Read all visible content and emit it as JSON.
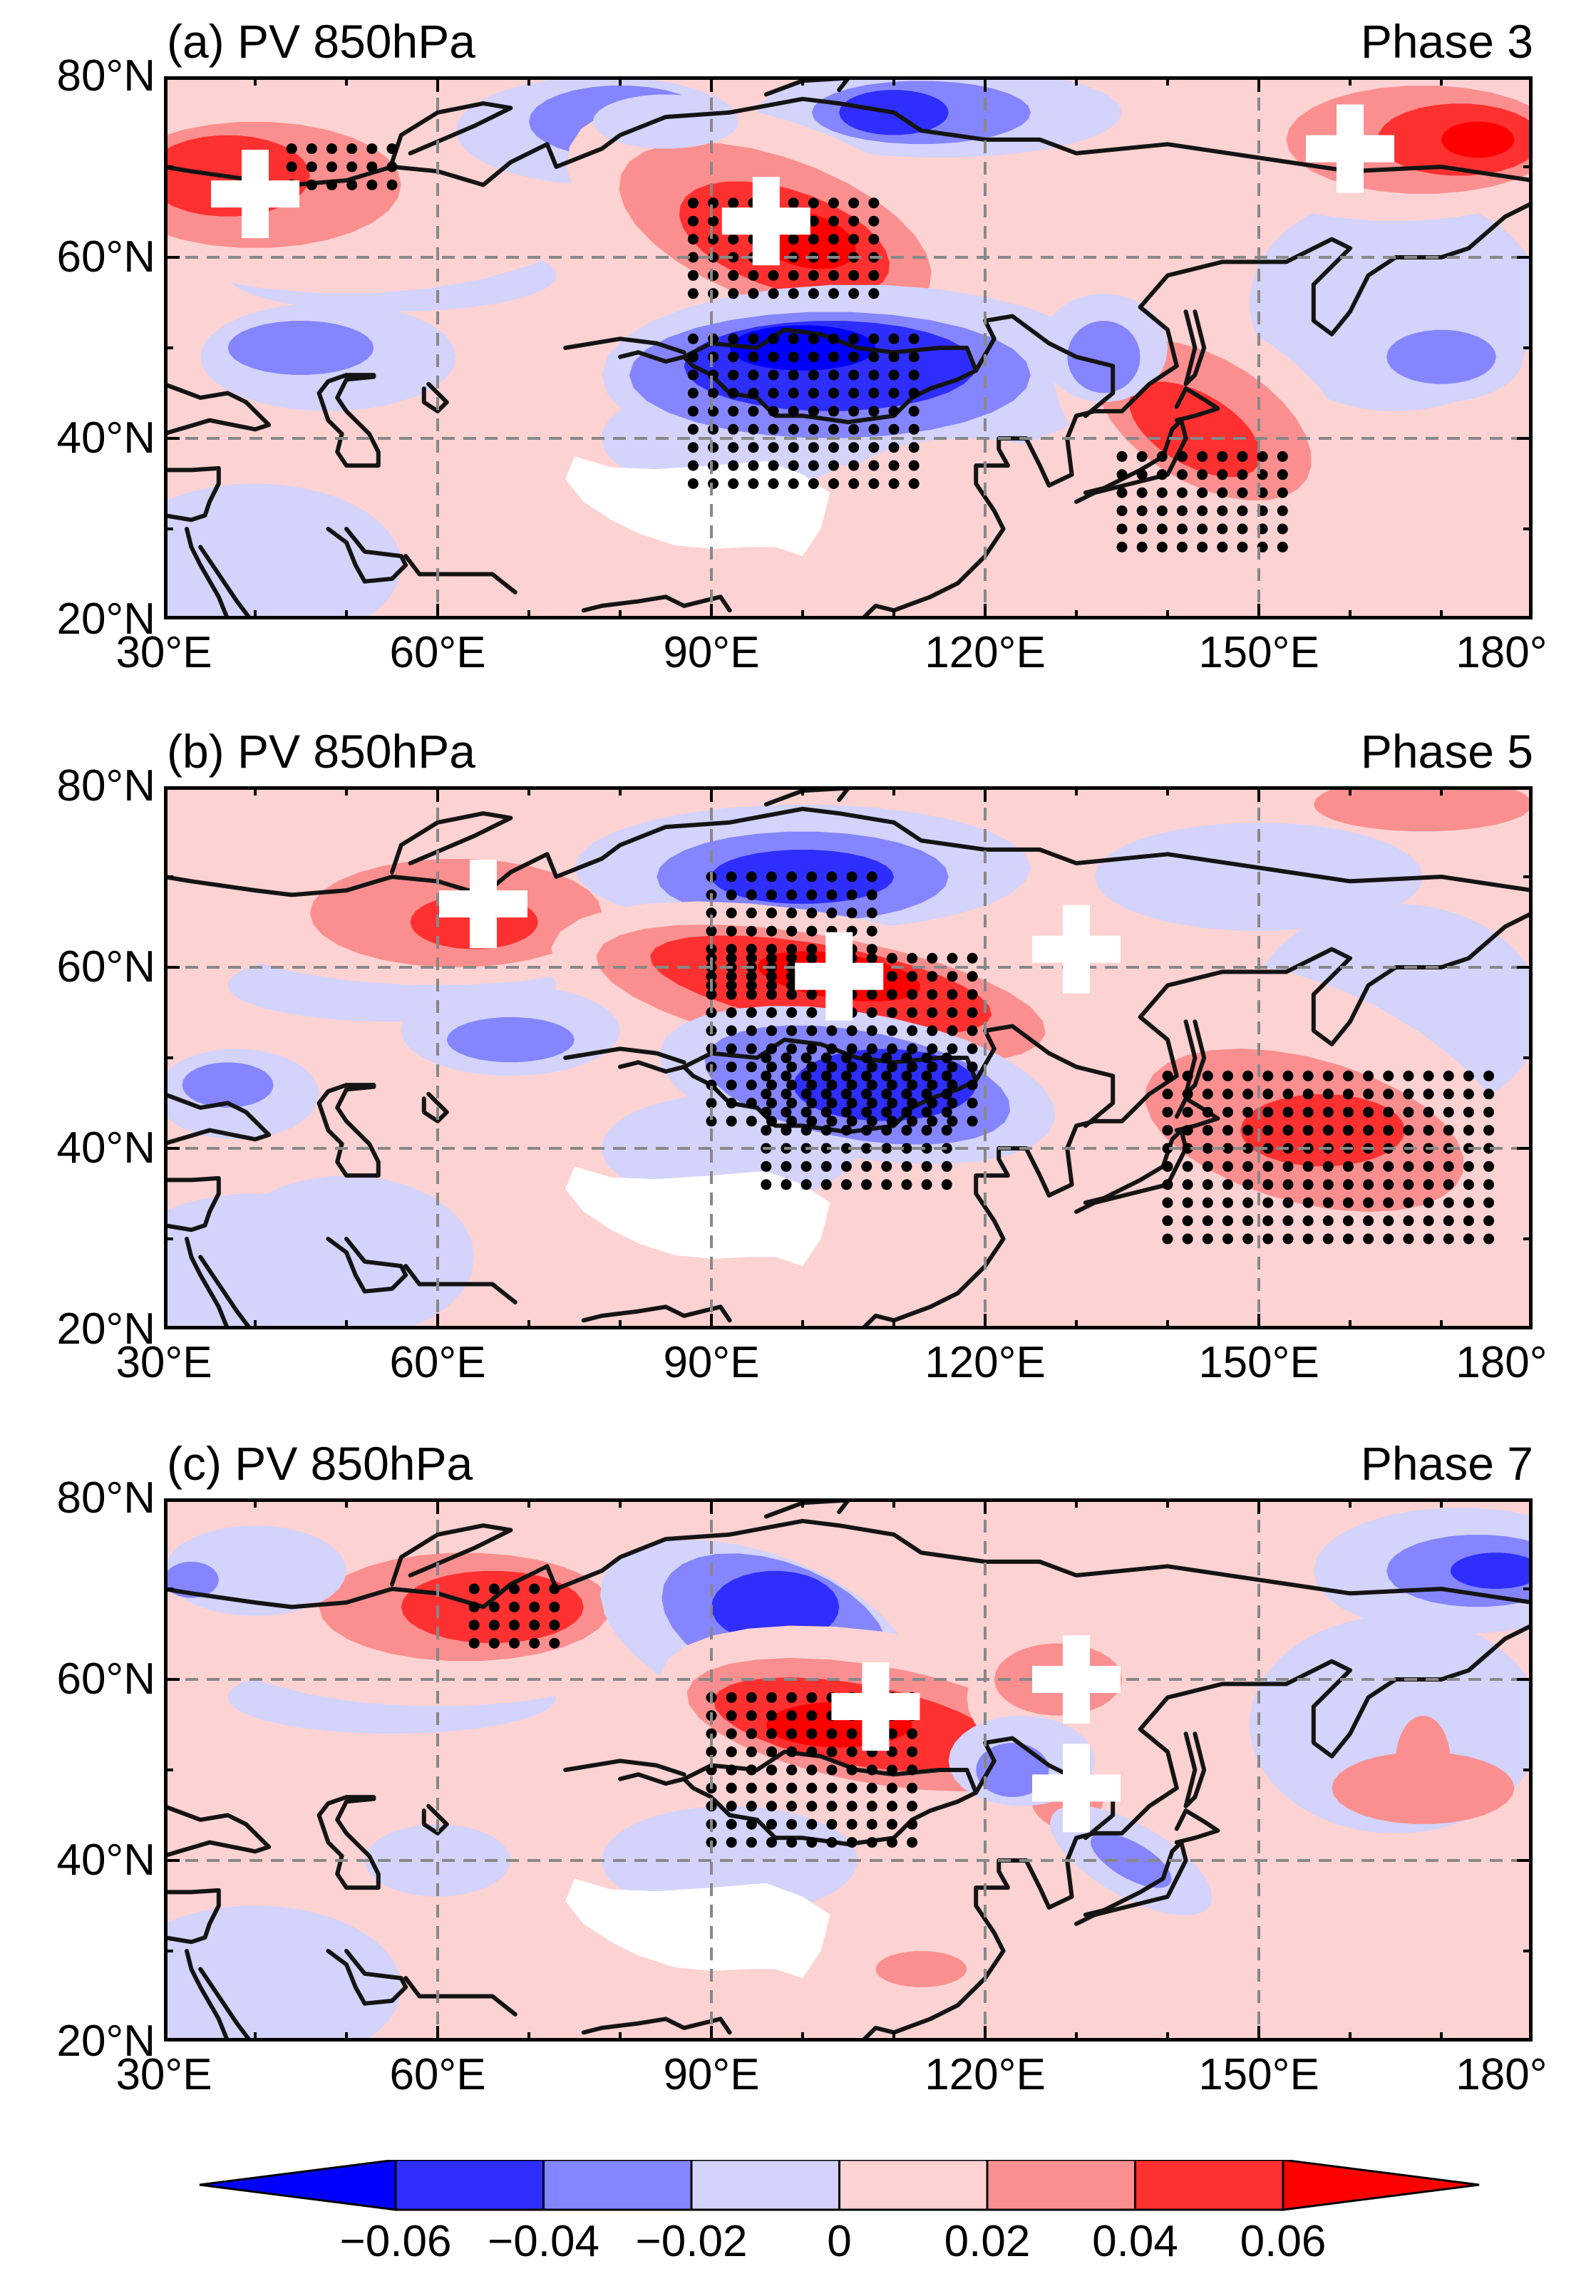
{
  "figure": {
    "colors": {
      "n6": "#0000ff",
      "n4": "#2e2eff",
      "n2": "#8585ff",
      "n0": "#d3d3fb",
      "p0": "#fdd2d2",
      "p2": "#fb8f8f",
      "p4": "#ff3030",
      "p6": "#ff0000",
      "plateau": "#ffffff",
      "coast": "#141414",
      "grid": "#888888"
    },
    "lat_labels": [
      "80°N",
      "60°N",
      "40°N",
      "20°N"
    ],
    "lon_labels": [
      "30°E",
      "60°E",
      "90°E",
      "120°E",
      "150°E",
      "180°"
    ]
  },
  "panels": [
    {
      "id": "a",
      "title": "(a) PV 850hPa",
      "phase": "Phase 3",
      "crosses": [
        [
          40,
          67
        ],
        [
          96,
          64
        ],
        [
          160,
          72
        ]
      ],
      "blobs": [
        {
          "c": "p0",
          "lon": 50,
          "lat": 68,
          "rx": 30,
          "ry": 12
        },
        {
          "c": "p2",
          "lon": 40,
          "lat": 68,
          "rx": 16,
          "ry": 7
        },
        {
          "c": "p4",
          "lon": 37,
          "lat": 69,
          "rx": 9,
          "ry": 4.5
        },
        {
          "c": "n0",
          "lon": 78,
          "lat": 74,
          "rx": 16,
          "ry": 6
        },
        {
          "c": "n2",
          "lon": 80,
          "lat": 75,
          "rx": 10,
          "ry": 4
        },
        {
          "c": "n0",
          "lon": 115,
          "lat": 76,
          "rx": 20,
          "ry": 5
        },
        {
          "c": "n2",
          "lon": 113,
          "lat": 76,
          "rx": 12,
          "ry": 3.5
        },
        {
          "c": "n4",
          "lon": 110,
          "lat": 76,
          "rx": 6,
          "ry": 2.5
        },
        {
          "c": "p0",
          "lon": 97,
          "lat": 64,
          "rx": 24,
          "ry": 11,
          "rot": -20
        },
        {
          "c": "p2",
          "lon": 97,
          "lat": 63,
          "rx": 18,
          "ry": 8,
          "rot": -20
        },
        {
          "c": "p4",
          "lon": 98,
          "lat": 62,
          "rx": 12,
          "ry": 5.5,
          "rot": -18
        },
        {
          "c": "p6",
          "lon": 100,
          "lat": 62,
          "rx": 6,
          "ry": 3,
          "rot": -15
        },
        {
          "c": "n0",
          "lon": 106,
          "lat": 47,
          "rx": 28,
          "ry": 10
        },
        {
          "c": "n2",
          "lon": 103,
          "lat": 47,
          "rx": 22,
          "ry": 7
        },
        {
          "c": "n4",
          "lon": 103,
          "lat": 48,
          "rx": 16,
          "ry": 5
        },
        {
          "c": "n6",
          "lon": 100,
          "lat": 50,
          "rx": 8,
          "ry": 2.5
        },
        {
          "c": "n0",
          "lon": 48,
          "lat": 49,
          "rx": 14,
          "ry": 6
        },
        {
          "c": "n2",
          "lon": 45,
          "lat": 50,
          "rx": 8,
          "ry": 3
        },
        {
          "c": "p0",
          "lon": 144,
          "lat": 42,
          "rx": 18,
          "ry": 11,
          "rot": -30
        },
        {
          "c": "p2",
          "lon": 144,
          "lat": 42,
          "rx": 13,
          "ry": 7,
          "rot": -30
        },
        {
          "c": "p4",
          "lon": 143,
          "lat": 41,
          "rx": 8,
          "ry": 4,
          "rot": -30
        },
        {
          "c": "n0",
          "lon": 133,
          "lat": 50,
          "rx": 7,
          "ry": 6
        },
        {
          "c": "n2",
          "lon": 133,
          "lat": 49,
          "rx": 4,
          "ry": 4
        },
        {
          "c": "n0",
          "lon": 170,
          "lat": 49,
          "rx": 9,
          "ry": 5
        },
        {
          "c": "n2",
          "lon": 170,
          "lat": 49,
          "rx": 6,
          "ry": 3
        },
        {
          "c": "p0",
          "lon": 165,
          "lat": 73,
          "rx": 22,
          "ry": 9
        },
        {
          "c": "p2",
          "lon": 168,
          "lat": 73,
          "rx": 15,
          "ry": 6
        },
        {
          "c": "p4",
          "lon": 172,
          "lat": 73,
          "rx": 9,
          "ry": 4
        },
        {
          "c": "p6",
          "lon": 174,
          "lat": 73,
          "rx": 4,
          "ry": 2
        },
        {
          "c": "p0",
          "lon": 118,
          "lat": 34,
          "rx": 14,
          "ry": 6
        },
        {
          "c": "n0",
          "lon": 85,
          "lat": 75,
          "rx": 8,
          "ry": 3
        }
      ],
      "dots": [
        [
          44,
          72,
          12,
          1,
          3,
          2
        ],
        [
          88,
          66,
          22,
          4,
          6,
          2
        ],
        [
          88,
          51,
          26,
          6,
          9,
          2
        ],
        [
          135,
          38,
          18,
          8,
          6,
          2
        ]
      ]
    },
    {
      "id": "b",
      "title": "(b) PV 850hPa",
      "phase": "Phase 5",
      "crosses": [
        [
          65,
          67
        ],
        [
          104,
          59
        ],
        [
          130,
          62
        ]
      ],
      "blobs": [
        {
          "c": "p0",
          "lon": 60,
          "lat": 68,
          "rx": 30,
          "ry": 10
        },
        {
          "c": "p2",
          "lon": 62,
          "lat": 66,
          "rx": 16,
          "ry": 6
        },
        {
          "c": "p4",
          "lon": 64,
          "lat": 65,
          "rx": 7,
          "ry": 3
        },
        {
          "c": "n0",
          "lon": 100,
          "lat": 71,
          "rx": 25,
          "ry": 7
        },
        {
          "c": "n2",
          "lon": 100,
          "lat": 70,
          "rx": 16,
          "ry": 5
        },
        {
          "c": "n4",
          "lon": 100,
          "lat": 70,
          "rx": 10,
          "ry": 3
        },
        {
          "c": "p0",
          "lon": 102,
          "lat": 57,
          "rx": 30,
          "ry": 9,
          "rot": -10
        },
        {
          "c": "p2",
          "lon": 102,
          "lat": 57,
          "rx": 25,
          "ry": 6.5,
          "rot": -10
        },
        {
          "c": "p4",
          "lon": 102,
          "lat": 58,
          "rx": 19,
          "ry": 4.5,
          "rot": -10
        },
        {
          "c": "p6",
          "lon": 104,
          "lat": 59,
          "rx": 9,
          "ry": 2.5,
          "rot": -8
        },
        {
          "c": "n0",
          "lon": 106,
          "lat": 47,
          "rx": 22,
          "ry": 8,
          "rot": -10
        },
        {
          "c": "n2",
          "lon": 106,
          "lat": 47,
          "rx": 17,
          "ry": 6,
          "rot": -10
        },
        {
          "c": "n4",
          "lon": 109,
          "lat": 47,
          "rx": 10,
          "ry": 4
        },
        {
          "c": "p0",
          "lon": 155,
          "lat": 44,
          "rx": 26,
          "ry": 14,
          "rot": -25
        },
        {
          "c": "p2",
          "lon": 155,
          "lat": 42,
          "rx": 18,
          "ry": 8,
          "rot": -15
        },
        {
          "c": "p4",
          "lon": 157,
          "lat": 42,
          "rx": 9,
          "ry": 4
        },
        {
          "c": "n0",
          "lon": 68,
          "lat": 53,
          "rx": 12,
          "ry": 5
        },
        {
          "c": "n2",
          "lon": 68,
          "lat": 52,
          "rx": 7,
          "ry": 2.5
        },
        {
          "c": "n0",
          "lon": 38,
          "lat": 46,
          "rx": 9,
          "ry": 5
        },
        {
          "c": "n2",
          "lon": 37,
          "lat": 47,
          "rx": 5,
          "ry": 2.5
        },
        {
          "c": "p0",
          "lon": 165,
          "lat": 77,
          "rx": 22,
          "ry": 5
        },
        {
          "c": "p2",
          "lon": 168,
          "lat": 78,
          "rx": 12,
          "ry": 3
        },
        {
          "c": "n0",
          "lon": 150,
          "lat": 70,
          "rx": 18,
          "ry": 6
        },
        {
          "c": "n0",
          "lon": 50,
          "lat": 28,
          "rx": 14,
          "ry": 9
        }
      ],
      "dots": [
        [
          90,
          70,
          18,
          1,
          7,
          2
        ],
        [
          90,
          61,
          30,
          3,
          10,
          2
        ],
        [
          96,
          50,
          20,
          6,
          8,
          2
        ],
        [
          140,
          48,
          36,
          14,
          10,
          2
        ]
      ]
    },
    {
      "id": "c",
      "title": "(c) PV 850hPa",
      "phase": "Phase 7",
      "crosses": [
        [
          108,
          57
        ],
        [
          130,
          60
        ],
        [
          130,
          48
        ]
      ],
      "blobs": [
        {
          "c": "p0",
          "lon": 60,
          "lat": 67,
          "rx": 28,
          "ry": 10
        },
        {
          "c": "p2",
          "lon": 63,
          "lat": 68,
          "rx": 16,
          "ry": 6
        },
        {
          "c": "p4",
          "lon": 66,
          "lat": 68,
          "rx": 10,
          "ry": 4
        },
        {
          "c": "n0",
          "lon": 95,
          "lat": 65,
          "rx": 18,
          "ry": 9,
          "rot": -20
        },
        {
          "c": "n2",
          "lon": 97,
          "lat": 66,
          "rx": 13,
          "ry": 7,
          "rot": -20
        },
        {
          "c": "n4",
          "lon": 97,
          "lat": 68,
          "rx": 7,
          "ry": 4
        },
        {
          "c": "p0",
          "lon": 110,
          "lat": 56,
          "rx": 26,
          "ry": 9,
          "rot": -10
        },
        {
          "c": "p2",
          "lon": 108,
          "lat": 55,
          "rx": 21,
          "ry": 6.5,
          "rot": -10
        },
        {
          "c": "p4",
          "lon": 106,
          "lat": 55,
          "rx": 16,
          "ry": 4.5,
          "rot": -10
        },
        {
          "c": "p6",
          "lon": 104,
          "lat": 55,
          "rx": 8,
          "ry": 2.5
        },
        {
          "c": "p0",
          "lon": 128,
          "lat": 58,
          "rx": 10,
          "ry": 7
        },
        {
          "c": "p2",
          "lon": 128,
          "lat": 60,
          "rx": 7,
          "ry": 4
        },
        {
          "c": "p2",
          "lon": 129,
          "lat": 47,
          "rx": 4,
          "ry": 3.5
        },
        {
          "c": "n0",
          "lon": 124,
          "lat": 51,
          "rx": 8,
          "ry": 5
        },
        {
          "c": "n2",
          "lon": 123,
          "lat": 50,
          "rx": 4,
          "ry": 3
        },
        {
          "c": "n0",
          "lon": 136,
          "lat": 40,
          "rx": 10,
          "ry": 4,
          "rot": -30
        },
        {
          "c": "n2",
          "lon": 136,
          "lat": 40,
          "rx": 5,
          "ry": 2,
          "rot": -30
        },
        {
          "c": "n0",
          "lon": 172,
          "lat": 72,
          "rx": 16,
          "ry": 7
        },
        {
          "c": "n2",
          "lon": 174,
          "lat": 72,
          "rx": 10,
          "ry": 4
        },
        {
          "c": "n4",
          "lon": 176,
          "lat": 72,
          "rx": 5,
          "ry": 2
        },
        {
          "c": "p2",
          "lon": 168,
          "lat": 48,
          "rx": 10,
          "ry": 4
        },
        {
          "c": "p2",
          "lon": 168,
          "lat": 51,
          "rx": 3,
          "ry": 5
        },
        {
          "c": "p0",
          "lon": 115,
          "lat": 30,
          "rx": 12,
          "ry": 5
        },
        {
          "c": "p2",
          "lon": 113,
          "lat": 28,
          "rx": 5,
          "ry": 2
        },
        {
          "c": "n0",
          "lon": 40,
          "lat": 72,
          "rx": 10,
          "ry": 5
        },
        {
          "c": "n2",
          "lon": 33,
          "lat": 71,
          "rx": 3,
          "ry": 2
        },
        {
          "c": "n0",
          "lon": 60,
          "lat": 40,
          "rx": 8,
          "ry": 4
        }
      ],
      "dots": [
        [
          64,
          70,
          10,
          1,
          4,
          2
        ],
        [
          90,
          58,
          24,
          3,
          9,
          2
        ],
        [
          90,
          54,
          10,
          2,
          4,
          2
        ]
      ]
    }
  ],
  "colorbar": {
    "labels": [
      "−0.06",
      "−0.04",
      "−0.02",
      "0",
      "0.02",
      "0.04",
      "0.06"
    ]
  }
}
